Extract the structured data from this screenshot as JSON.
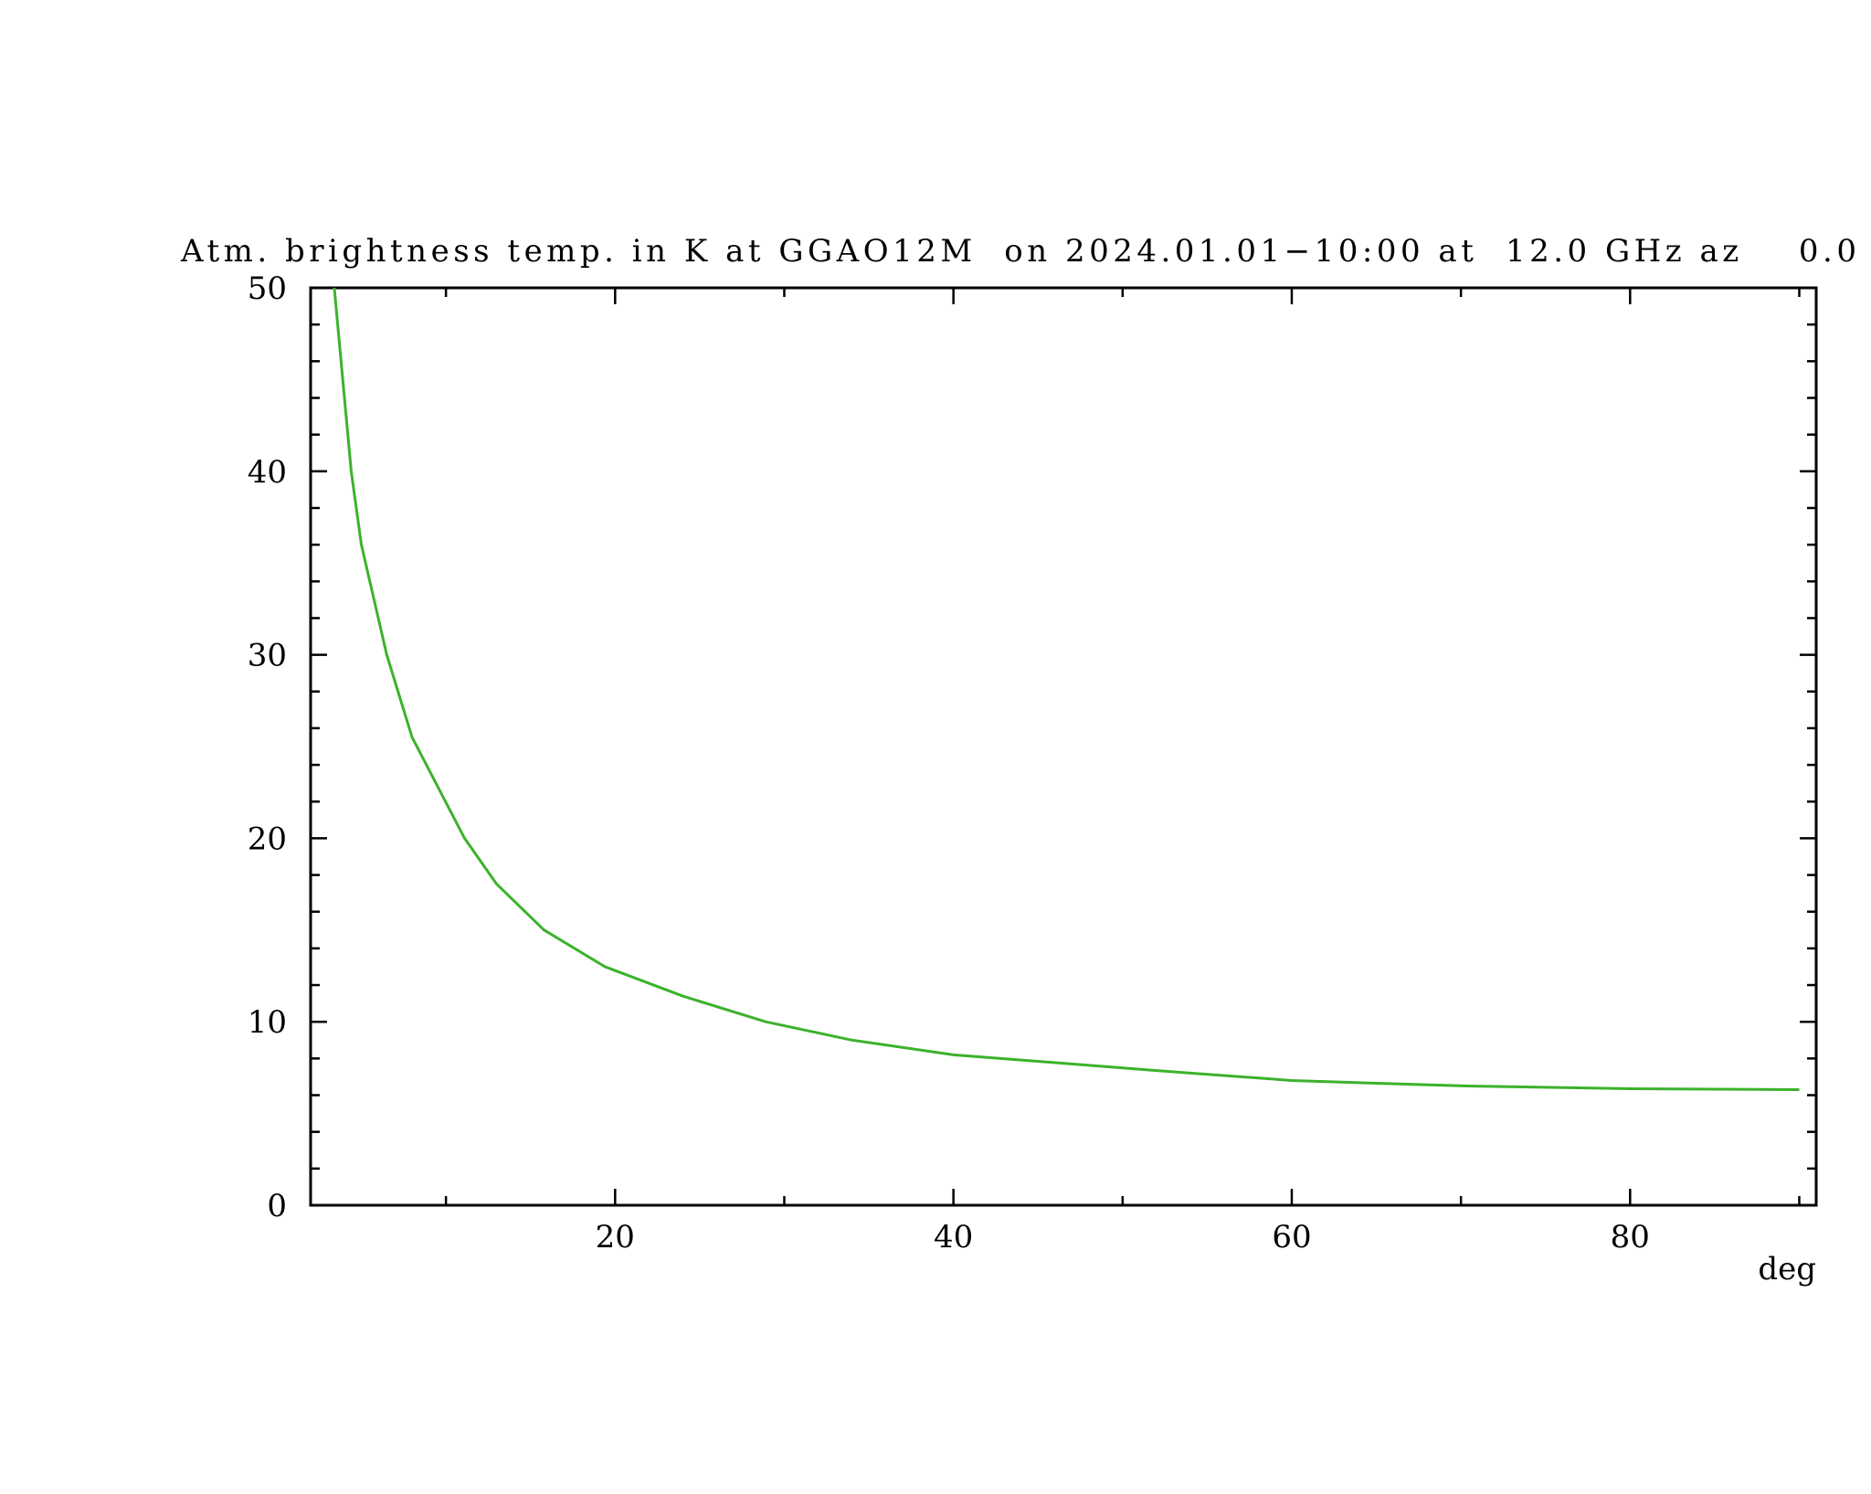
{
  "chart_data": {
    "type": "line",
    "title": "Atm. brightness temp. in K at GGAO12M  on 2024.01.01−10:00 at  12.0 GHz az    0.0",
    "x_label": "deg",
    "x": [
      3.4,
      4.4,
      5,
      6.5,
      8,
      11.1,
      13,
      15.8,
      19.4,
      24,
      28.9,
      34,
      40,
      47,
      54,
      60,
      65,
      70.4,
      80,
      90
    ],
    "series": [
      {
        "color": "#3cb22c",
        "values": [
          50,
          40,
          36,
          30,
          25.5,
          20,
          17.5,
          15,
          13,
          11.4,
          10,
          9,
          8.2,
          7.7,
          7.2,
          6.8,
          6.65,
          6.5,
          6.35,
          6.3
        ]
      }
    ],
    "xlim": [
      2,
      91
    ],
    "xticks": [
      20,
      40,
      60,
      80
    ],
    "xminorticks": [
      10,
      30,
      50,
      70,
      90
    ],
    "ylim": [
      0,
      50
    ],
    "yticks": [
      0,
      10,
      20,
      30,
      40,
      50
    ],
    "yminorticks": [
      2,
      4,
      6,
      8,
      12,
      14,
      16,
      18,
      22,
      24,
      26,
      28,
      32,
      34,
      36,
      38,
      42,
      44,
      46,
      48
    ],
    "ticks_on_all_sides": true
  }
}
